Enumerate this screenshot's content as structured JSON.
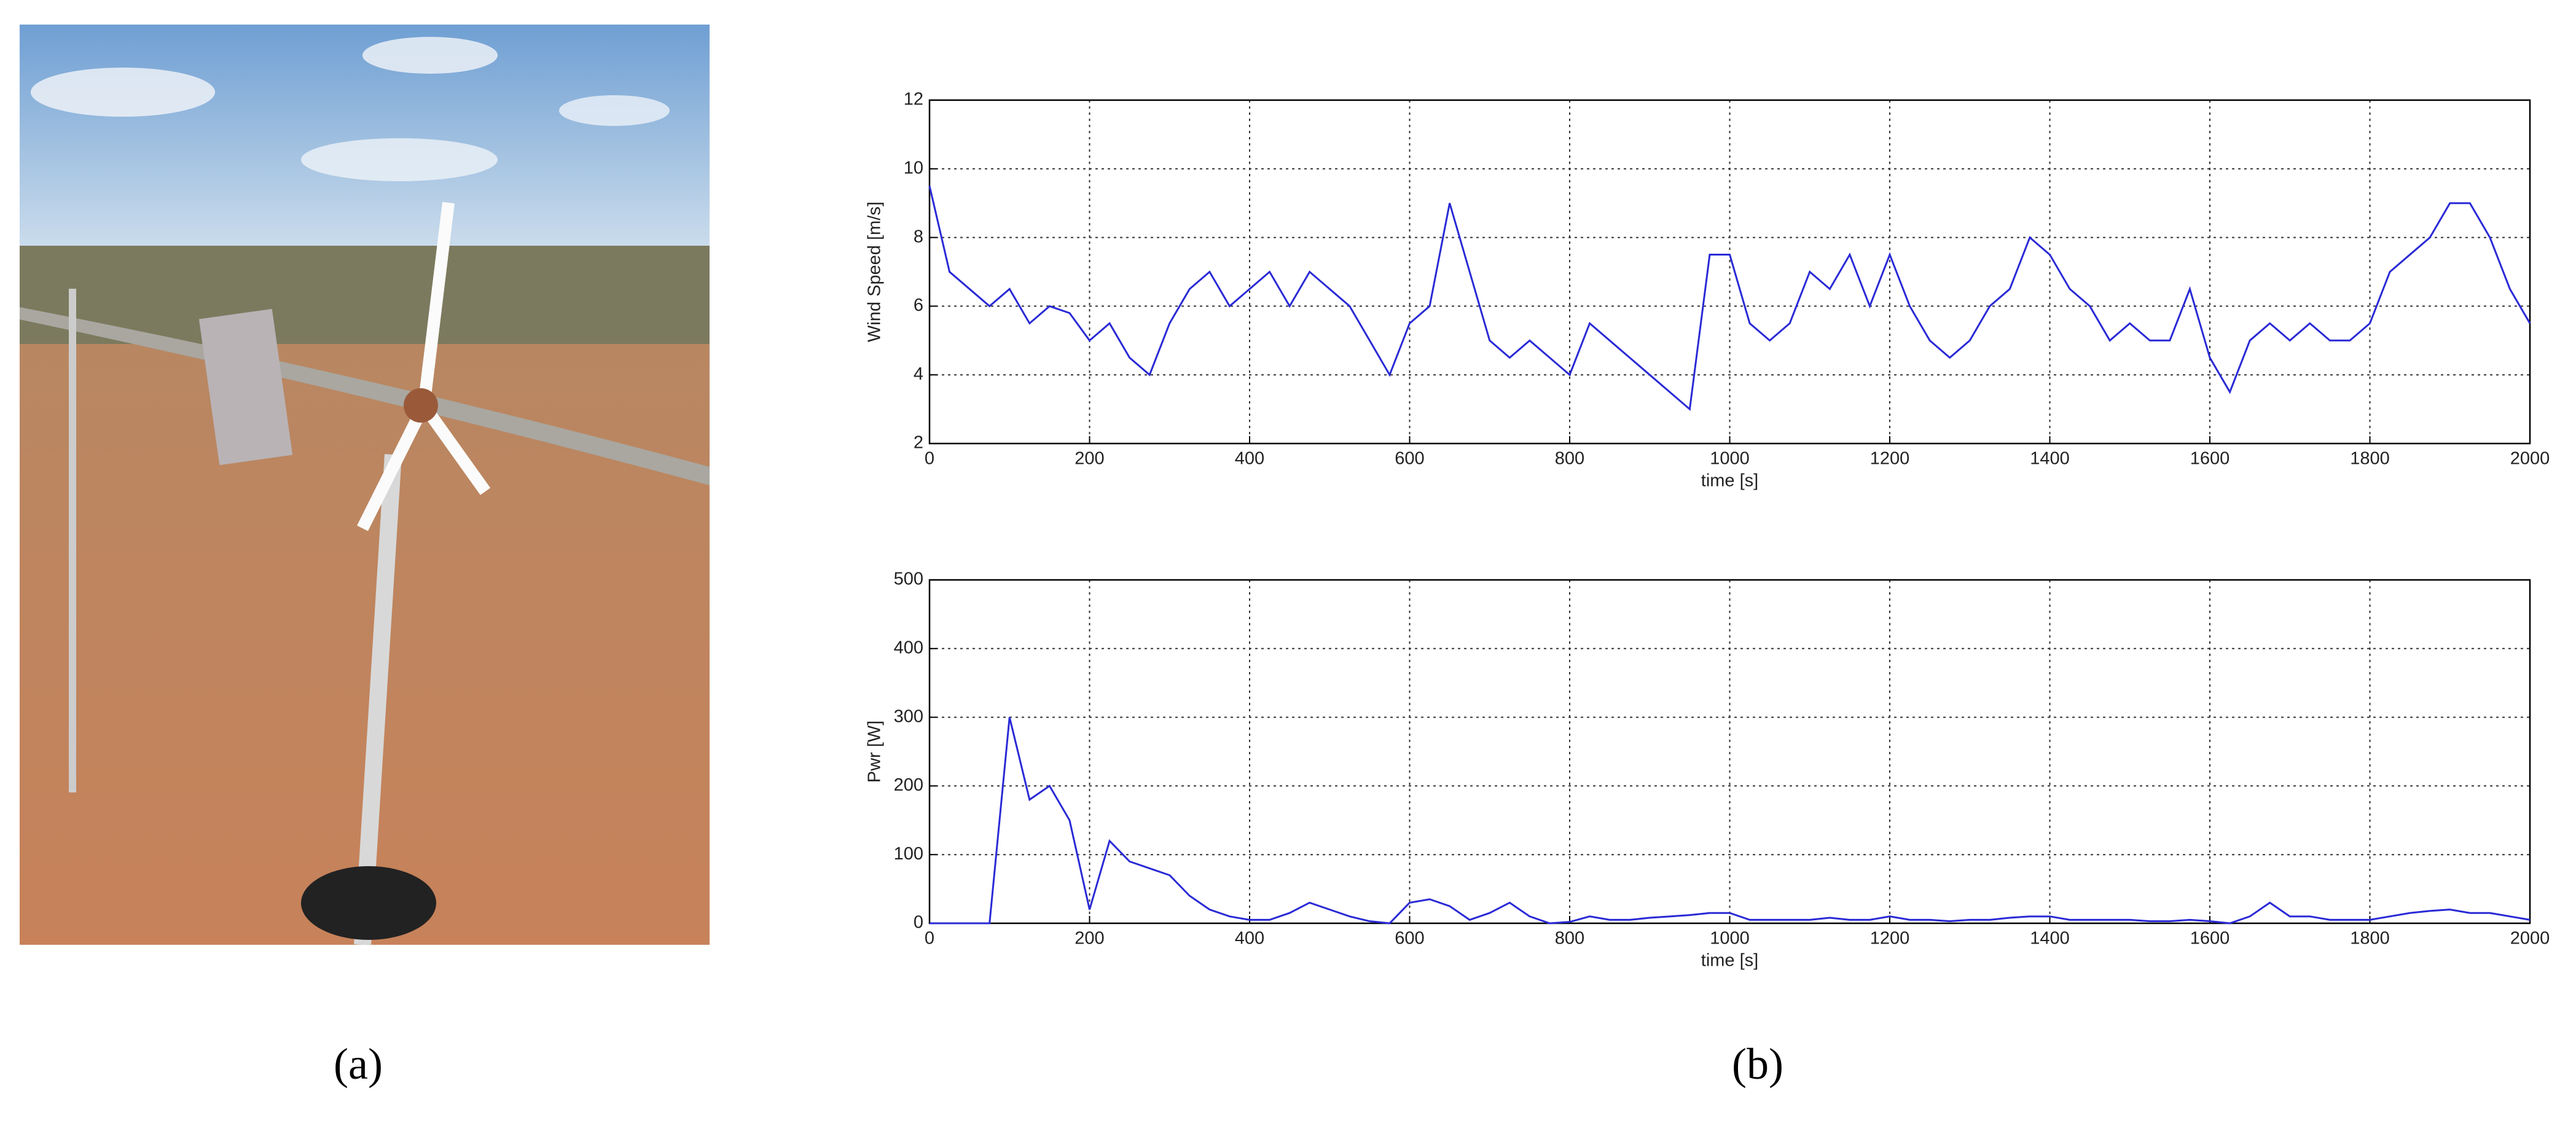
{
  "panel_labels": [
    "(a)",
    "(b)"
  ],
  "chart_data": [
    {
      "type": "line",
      "ylabel": "Wind Speed [m/s]",
      "xlabel": "time [s]",
      "x": [
        0,
        25,
        50,
        75,
        100,
        125,
        150,
        175,
        200,
        225,
        250,
        275,
        300,
        325,
        350,
        375,
        400,
        425,
        450,
        475,
        500,
        525,
        550,
        575,
        600,
        625,
        650,
        675,
        700,
        725,
        750,
        775,
        800,
        825,
        850,
        875,
        900,
        925,
        950,
        975,
        1000,
        1025,
        1050,
        1075,
        1100,
        1125,
        1150,
        1175,
        1200,
        1225,
        1250,
        1275,
        1300,
        1325,
        1350,
        1375,
        1400,
        1425,
        1450,
        1475,
        1500,
        1525,
        1550,
        1575,
        1600,
        1625,
        1650,
        1675,
        1700,
        1725,
        1750,
        1775,
        1800,
        1825,
        1850,
        1875,
        1900,
        1925,
        1950,
        1975,
        2000
      ],
      "series": [
        {
          "color": "#2a2ad6",
          "values": [
            9.5,
            7,
            6.5,
            6,
            6.5,
            5.5,
            6,
            5.8,
            5,
            5.5,
            4.5,
            4,
            5.5,
            6.5,
            7,
            6,
            6.5,
            7,
            6,
            7,
            6.5,
            6,
            5,
            4,
            5.5,
            6,
            9,
            7,
            5,
            4.5,
            5,
            4.5,
            4,
            5.5,
            5,
            4.5,
            4,
            3.5,
            3,
            7.5,
            7.5,
            5.5,
            5,
            5.5,
            7,
            6.5,
            7.5,
            6,
            7.5,
            6,
            5,
            4.5,
            5,
            6,
            6.5,
            8,
            7.5,
            6.5,
            6,
            5,
            5.5,
            5,
            5,
            6.5,
            4.5,
            3.5,
            5,
            5.5,
            5,
            5.5,
            5,
            5,
            5.5,
            7,
            7.5,
            8,
            9,
            9,
            8,
            6.5,
            5.5
          ]
        }
      ],
      "xlim": [
        0,
        2000
      ],
      "xticks": [
        0,
        200,
        400,
        600,
        800,
        1000,
        1200,
        1400,
        1600,
        1800,
        2000
      ],
      "ylim": [
        2,
        12
      ],
      "yticks": [
        2,
        4,
        6,
        8,
        10,
        12
      ],
      "grid": true
    },
    {
      "type": "line",
      "ylabel": "Pwr [W]",
      "xlabel": "time [s]",
      "x": [
        0,
        25,
        50,
        75,
        100,
        125,
        150,
        175,
        200,
        225,
        250,
        275,
        300,
        325,
        350,
        375,
        400,
        425,
        450,
        475,
        500,
        525,
        550,
        575,
        600,
        625,
        650,
        675,
        700,
        725,
        750,
        775,
        800,
        825,
        850,
        875,
        900,
        925,
        950,
        975,
        1000,
        1025,
        1050,
        1075,
        1100,
        1125,
        1150,
        1175,
        1200,
        1225,
        1250,
        1275,
        1300,
        1325,
        1350,
        1375,
        1400,
        1425,
        1450,
        1475,
        1500,
        1525,
        1550,
        1575,
        1600,
        1625,
        1650,
        1675,
        1700,
        1725,
        1750,
        1775,
        1800,
        1825,
        1850,
        1875,
        1900,
        1925,
        1950,
        1975,
        2000
      ],
      "series": [
        {
          "color": "#2a2ad6",
          "values": [
            0,
            0,
            0,
            0,
            300,
            180,
            200,
            150,
            20,
            120,
            90,
            80,
            70,
            40,
            20,
            10,
            5,
            5,
            15,
            30,
            20,
            10,
            3,
            0,
            30,
            35,
            25,
            5,
            15,
            30,
            10,
            0,
            2,
            10,
            5,
            5,
            8,
            10,
            12,
            15,
            15,
            5,
            5,
            5,
            5,
            8,
            5,
            5,
            10,
            5,
            5,
            3,
            5,
            5,
            8,
            10,
            10,
            5,
            5,
            5,
            5,
            3,
            3,
            5,
            3,
            0,
            10,
            30,
            10,
            10,
            5,
            5,
            5,
            10,
            15,
            18,
            20,
            15,
            15,
            10,
            5
          ]
        }
      ],
      "xlim": [
        0,
        2000
      ],
      "xticks": [
        0,
        200,
        400,
        600,
        800,
        1000,
        1200,
        1400,
        1600,
        1800,
        2000
      ],
      "ylim": [
        0,
        500
      ],
      "yticks": [
        0,
        100,
        200,
        300,
        400,
        500
      ],
      "grid": true
    }
  ]
}
